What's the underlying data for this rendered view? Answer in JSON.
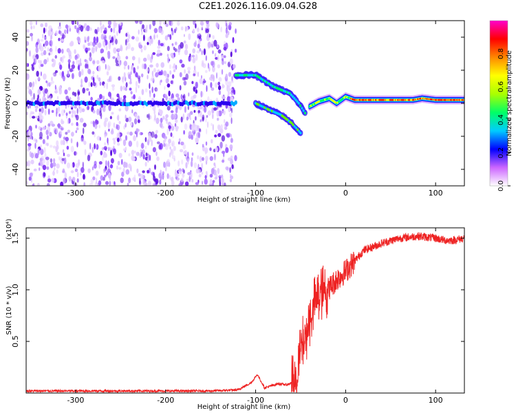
{
  "title": "C2E1.2026.116.09.04.G28",
  "chart_data": [
    {
      "type": "heatmap",
      "xlabel": "Height of straight line (km)",
      "ylabel": "Frequency (Hz)",
      "xlim": [
        -355,
        132
      ],
      "ylim": [
        -50,
        50
      ],
      "xticks": [
        -300,
        -200,
        -100,
        0,
        100
      ],
      "yticks": [
        -40,
        -20,
        0,
        20,
        40
      ],
      "colorbar": {
        "label": "Normalized spectral amplitude",
        "range": [
          0.0,
          1.0
        ],
        "ticks": [
          "0.0",
          "0.2",
          "0.4",
          "0.6",
          "0.8"
        ],
        "colors": [
          "#ffffff",
          "#cc66ff",
          "#0000ff",
          "#00ccff",
          "#00ff66",
          "#aaff00",
          "#ffff00",
          "#ff8800",
          "#ff0000",
          "#ff00cc"
        ]
      },
      "features": [
        {
          "name": "noise",
          "x_range": [
            -355,
            -122
          ],
          "y_range": [
            -50,
            50
          ]
        },
        {
          "name": "carrier",
          "x": [
            -355,
            -122
          ],
          "y": [
            0,
            0
          ]
        },
        {
          "name": "branch_upper",
          "x": [
            -122,
            -100,
            -80,
            -62,
            -52,
            -45
          ],
          "y": [
            17,
            17,
            10,
            6,
            0,
            -6
          ]
        },
        {
          "name": "branch_lower",
          "x": [
            -100,
            -85,
            -72,
            -60,
            -50
          ],
          "y": [
            0,
            -4,
            -7,
            -12,
            -18
          ]
        },
        {
          "name": "carrier_recovered",
          "x": [
            -40,
            -30,
            -18,
            -10,
            0,
            10,
            40,
            75,
            85,
            100,
            132
          ],
          "y": [
            -2,
            1,
            3,
            0,
            4,
            2,
            2,
            2,
            3,
            2,
            2
          ]
        }
      ]
    },
    {
      "type": "line",
      "xlabel": "Height of straight line (km)",
      "ylabel": "SNR (10 * v/v)",
      "scale_label": "(x10⁴)",
      "xlim": [
        -355,
        132
      ],
      "ylim": [
        0,
        1.6
      ],
      "xticks": [
        -300,
        -200,
        -100,
        0,
        100
      ],
      "yticks": [
        0.5,
        1.0,
        1.5
      ],
      "series": [
        {
          "color": "#ee2222",
          "x": [
            -355,
            -250,
            -150,
            -120,
            -105,
            -98,
            -90,
            -75,
            -65,
            -55,
            -50,
            -45,
            -40,
            -35,
            -28,
            -20,
            -10,
            0,
            10,
            20,
            40,
            60,
            80,
            100,
            110,
            120,
            132
          ],
          "y": [
            0.02,
            0.02,
            0.02,
            0.03,
            0.1,
            0.18,
            0.05,
            0.09,
            0.08,
            0.12,
            0.4,
            0.55,
            0.7,
            0.85,
            0.95,
            1.0,
            1.1,
            1.18,
            1.28,
            1.38,
            1.45,
            1.5,
            1.52,
            1.5,
            1.48,
            1.48,
            1.5
          ]
        }
      ]
    }
  ]
}
